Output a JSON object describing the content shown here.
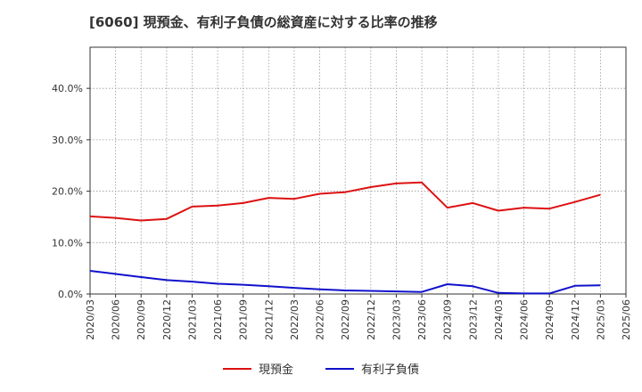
{
  "chart_data": {
    "type": "line",
    "title": "[6060]  現預金、有利子負債の総資産に対する比率の推移",
    "xlabel": "",
    "ylabel": "",
    "ylim": [
      0,
      48
    ],
    "grid": true,
    "legend_position": "bottom",
    "yticks": [
      {
        "value": 0,
        "label": "0.0%"
      },
      {
        "value": 10,
        "label": "10.0%"
      },
      {
        "value": 20,
        "label": "20.0%"
      },
      {
        "value": 30,
        "label": "30.0%"
      },
      {
        "value": 40,
        "label": "40.0%"
      }
    ],
    "categories": [
      "2020/03",
      "2020/06",
      "2020/09",
      "2020/12",
      "2021/03",
      "2021/06",
      "2021/09",
      "2021/12",
      "2022/03",
      "2022/06",
      "2022/09",
      "2022/12",
      "2023/03",
      "2023/06",
      "2023/09",
      "2023/12",
      "2024/03",
      "2024/06",
      "2024/09",
      "2024/12",
      "2025/03",
      "2025/06"
    ],
    "series": [
      {
        "name": "現預金",
        "color": "#dd1111",
        "values": [
          15.1,
          14.8,
          14.3,
          14.6,
          17.0,
          17.2,
          17.7,
          18.7,
          18.5,
          19.5,
          19.8,
          20.8,
          21.5,
          21.7,
          16.8,
          17.7,
          16.2,
          16.8,
          16.6,
          17.9,
          19.3,
          null
        ]
      },
      {
        "name": "有利子負債",
        "color": "#1111cc",
        "values": [
          4.5,
          3.9,
          3.3,
          2.7,
          2.4,
          2.0,
          1.8,
          1.5,
          1.2,
          0.9,
          0.7,
          0.6,
          0.5,
          0.4,
          1.9,
          1.5,
          0.2,
          0.1,
          0.1,
          1.6,
          1.7,
          null
        ]
      }
    ]
  }
}
